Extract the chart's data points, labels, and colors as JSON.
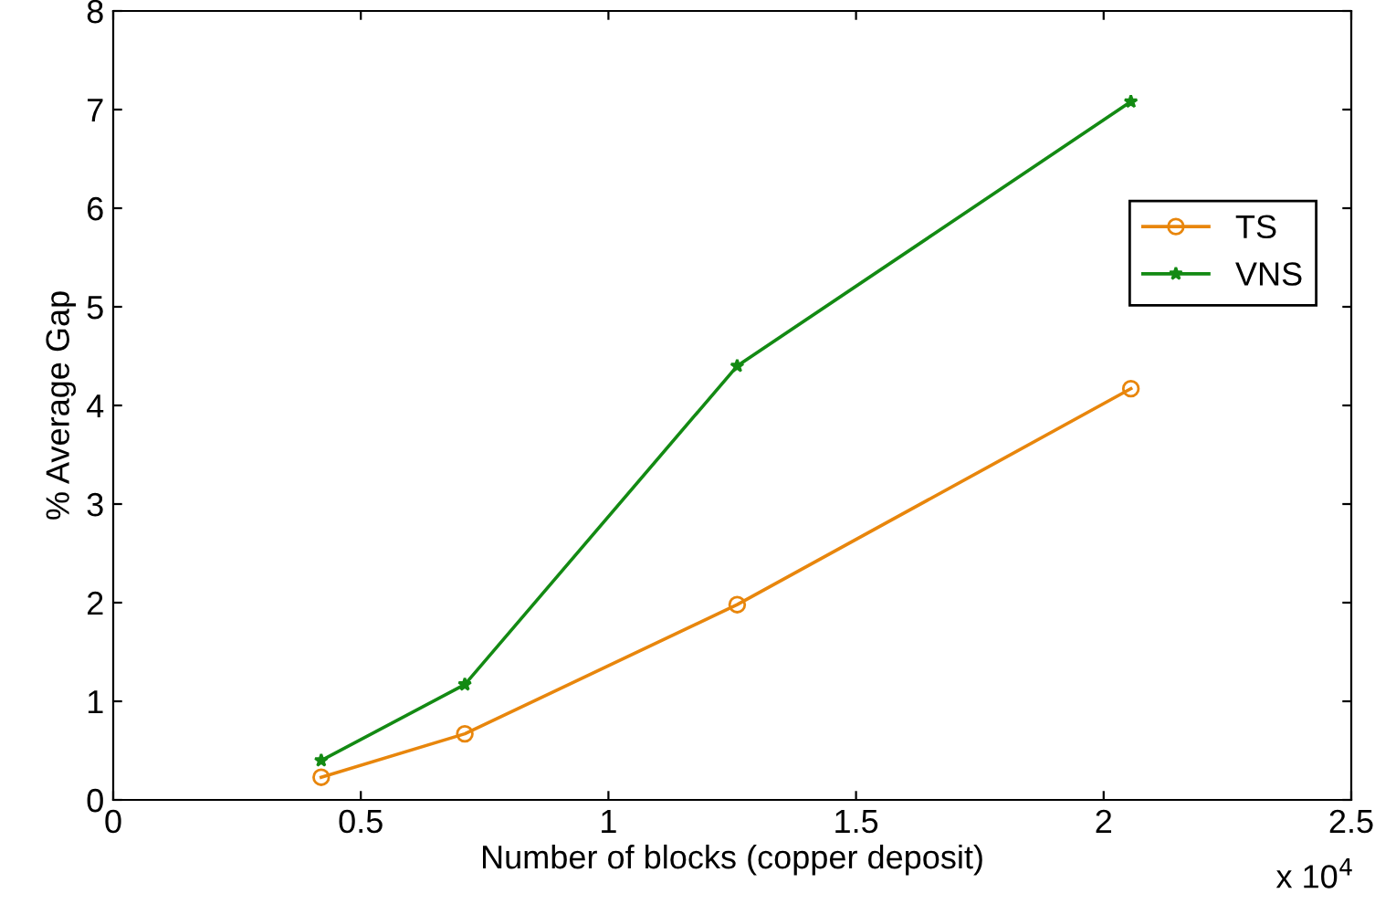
{
  "chart_data": {
    "type": "line",
    "xlabel": "Number of blocks (copper deposit)",
    "ylabel": "% Average Gap",
    "x": [
      0.42,
      0.71,
      1.26,
      2.055
    ],
    "series": [
      {
        "name": "TS",
        "color": "#e8860c",
        "values": [
          0.23,
          0.67,
          1.98,
          4.17
        ],
        "marker": "circle"
      },
      {
        "name": "VNS",
        "color": "#138a13",
        "values": [
          0.4,
          1.17,
          4.4,
          7.08
        ],
        "marker": "star"
      }
    ],
    "xlim": [
      0,
      2.5
    ],
    "xticks": [
      0,
      0.5,
      1,
      1.5,
      2,
      2.5
    ],
    "ylim": [
      0,
      8
    ],
    "yticks": [
      0,
      1,
      2,
      3,
      4,
      5,
      6,
      7,
      8
    ],
    "annotations": [
      "x 10$^{4}$"
    ],
    "grid": false,
    "legend": "top right",
    "line_style": "solid"
  }
}
